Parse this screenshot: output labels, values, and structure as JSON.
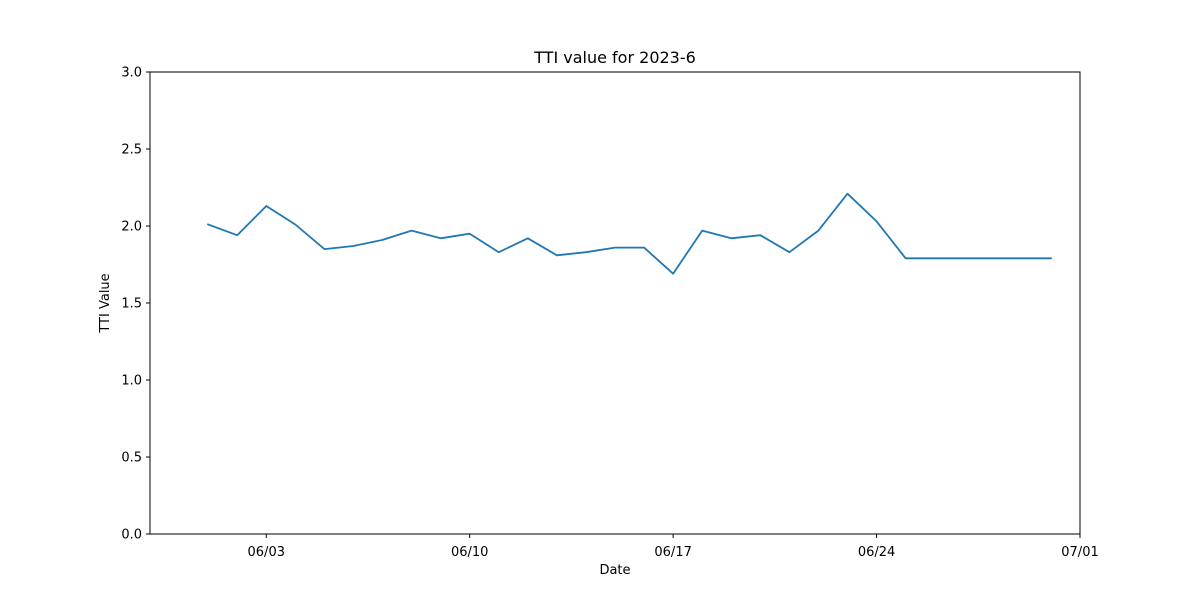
{
  "chart_data": {
    "type": "line",
    "title": "TTI value for 2023-6",
    "xlabel": "Date",
    "ylabel": "TTI Value",
    "ylim": [
      0,
      3.0
    ],
    "xlim": [
      "2023-05-30",
      "2023-07-01"
    ],
    "grid": false,
    "x_ticks": [
      {
        "date": "2023-06-03",
        "label": "06/03"
      },
      {
        "date": "2023-06-10",
        "label": "06/10"
      },
      {
        "date": "2023-06-17",
        "label": "06/17"
      },
      {
        "date": "2023-06-24",
        "label": "06/24"
      },
      {
        "date": "2023-07-01",
        "label": "07/01"
      }
    ],
    "y_ticks": [
      {
        "value": 0.0,
        "label": "0.0"
      },
      {
        "value": 0.5,
        "label": "0.5"
      },
      {
        "value": 1.0,
        "label": "1.0"
      },
      {
        "value": 1.5,
        "label": "1.5"
      },
      {
        "value": 2.0,
        "label": "2.0"
      },
      {
        "value": 2.5,
        "label": "2.5"
      },
      {
        "value": 3.0,
        "label": "3.0"
      }
    ],
    "series": [
      {
        "color": "#1f77b4",
        "x": [
          "2023-06-01",
          "2023-06-02",
          "2023-06-03",
          "2023-06-04",
          "2023-06-05",
          "2023-06-06",
          "2023-06-07",
          "2023-06-08",
          "2023-06-09",
          "2023-06-10",
          "2023-06-11",
          "2023-06-12",
          "2023-06-13",
          "2023-06-14",
          "2023-06-15",
          "2023-06-16",
          "2023-06-17",
          "2023-06-18",
          "2023-06-19",
          "2023-06-20",
          "2023-06-21",
          "2023-06-22",
          "2023-06-23",
          "2023-06-24",
          "2023-06-25",
          "2023-06-26",
          "2023-06-27",
          "2023-06-28",
          "2023-06-29",
          "2023-06-30"
        ],
        "values": [
          2.01,
          1.94,
          2.13,
          2.01,
          1.85,
          1.87,
          1.91,
          1.97,
          1.92,
          1.95,
          1.83,
          1.92,
          1.81,
          1.83,
          1.86,
          1.86,
          1.69,
          1.97,
          1.92,
          1.94,
          1.83,
          1.97,
          2.21,
          2.03,
          1.79,
          1.79,
          1.79,
          1.79,
          1.79,
          1.79
        ]
      }
    ]
  }
}
